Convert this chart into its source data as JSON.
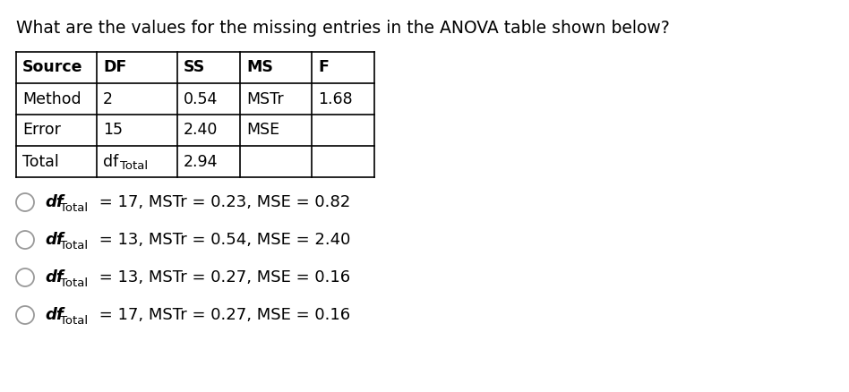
{
  "title": "What are the values for the missing entries in the ANOVA table shown below?",
  "title_fontsize": 13.5,
  "table_headers": [
    "Source",
    "DF",
    "SS",
    "MS",
    "F"
  ],
  "table_rows": [
    [
      "Method",
      "2",
      "0.54",
      "MSTr",
      "1.68"
    ],
    [
      "Error",
      "15",
      "2.40",
      "MSE",
      ""
    ],
    [
      "Total",
      "dfTotal",
      "2.94",
      "",
      ""
    ]
  ],
  "options": [
    [
      " = 17, MSTr = 0.23, MSE = 0.82"
    ],
    [
      " = 13, MSTr = 0.54, MSE = 2.40"
    ],
    [
      " = 13, MSTr = 0.27, MSE = 0.16"
    ],
    [
      " = 17, MSTr = 0.27, MSE = 0.16"
    ]
  ],
  "background_color": "#ffffff",
  "text_color": "#000000"
}
